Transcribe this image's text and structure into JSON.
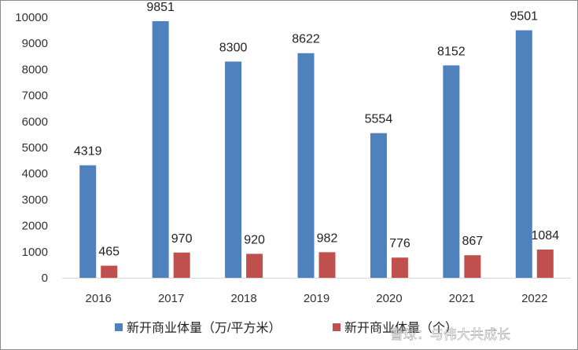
{
  "chart_data": {
    "type": "bar",
    "categories": [
      "2016",
      "2017",
      "2018",
      "2019",
      "2020",
      "2021",
      "2022"
    ],
    "series": [
      {
        "name": "新开商业体量（万/平方米）",
        "values": [
          4319,
          9851,
          8300,
          8622,
          5554,
          8152,
          9501
        ],
        "color": "#4f81bd"
      },
      {
        "name": "新开商业体量（个）",
        "values": [
          465,
          970,
          920,
          982,
          776,
          867,
          1084
        ],
        "color": "#c0504d"
      }
    ],
    "y_ticks": [
      "0",
      "1000",
      "2000",
      "3000",
      "4000",
      "5000",
      "6000",
      "7000",
      "8000",
      "9000",
      "10000"
    ],
    "ylim": [
      0,
      10000
    ],
    "grid": false,
    "legend_position": "bottom",
    "title": "",
    "xlabel": "",
    "ylabel": ""
  },
  "watermark": "雪球：与伟大共成长"
}
